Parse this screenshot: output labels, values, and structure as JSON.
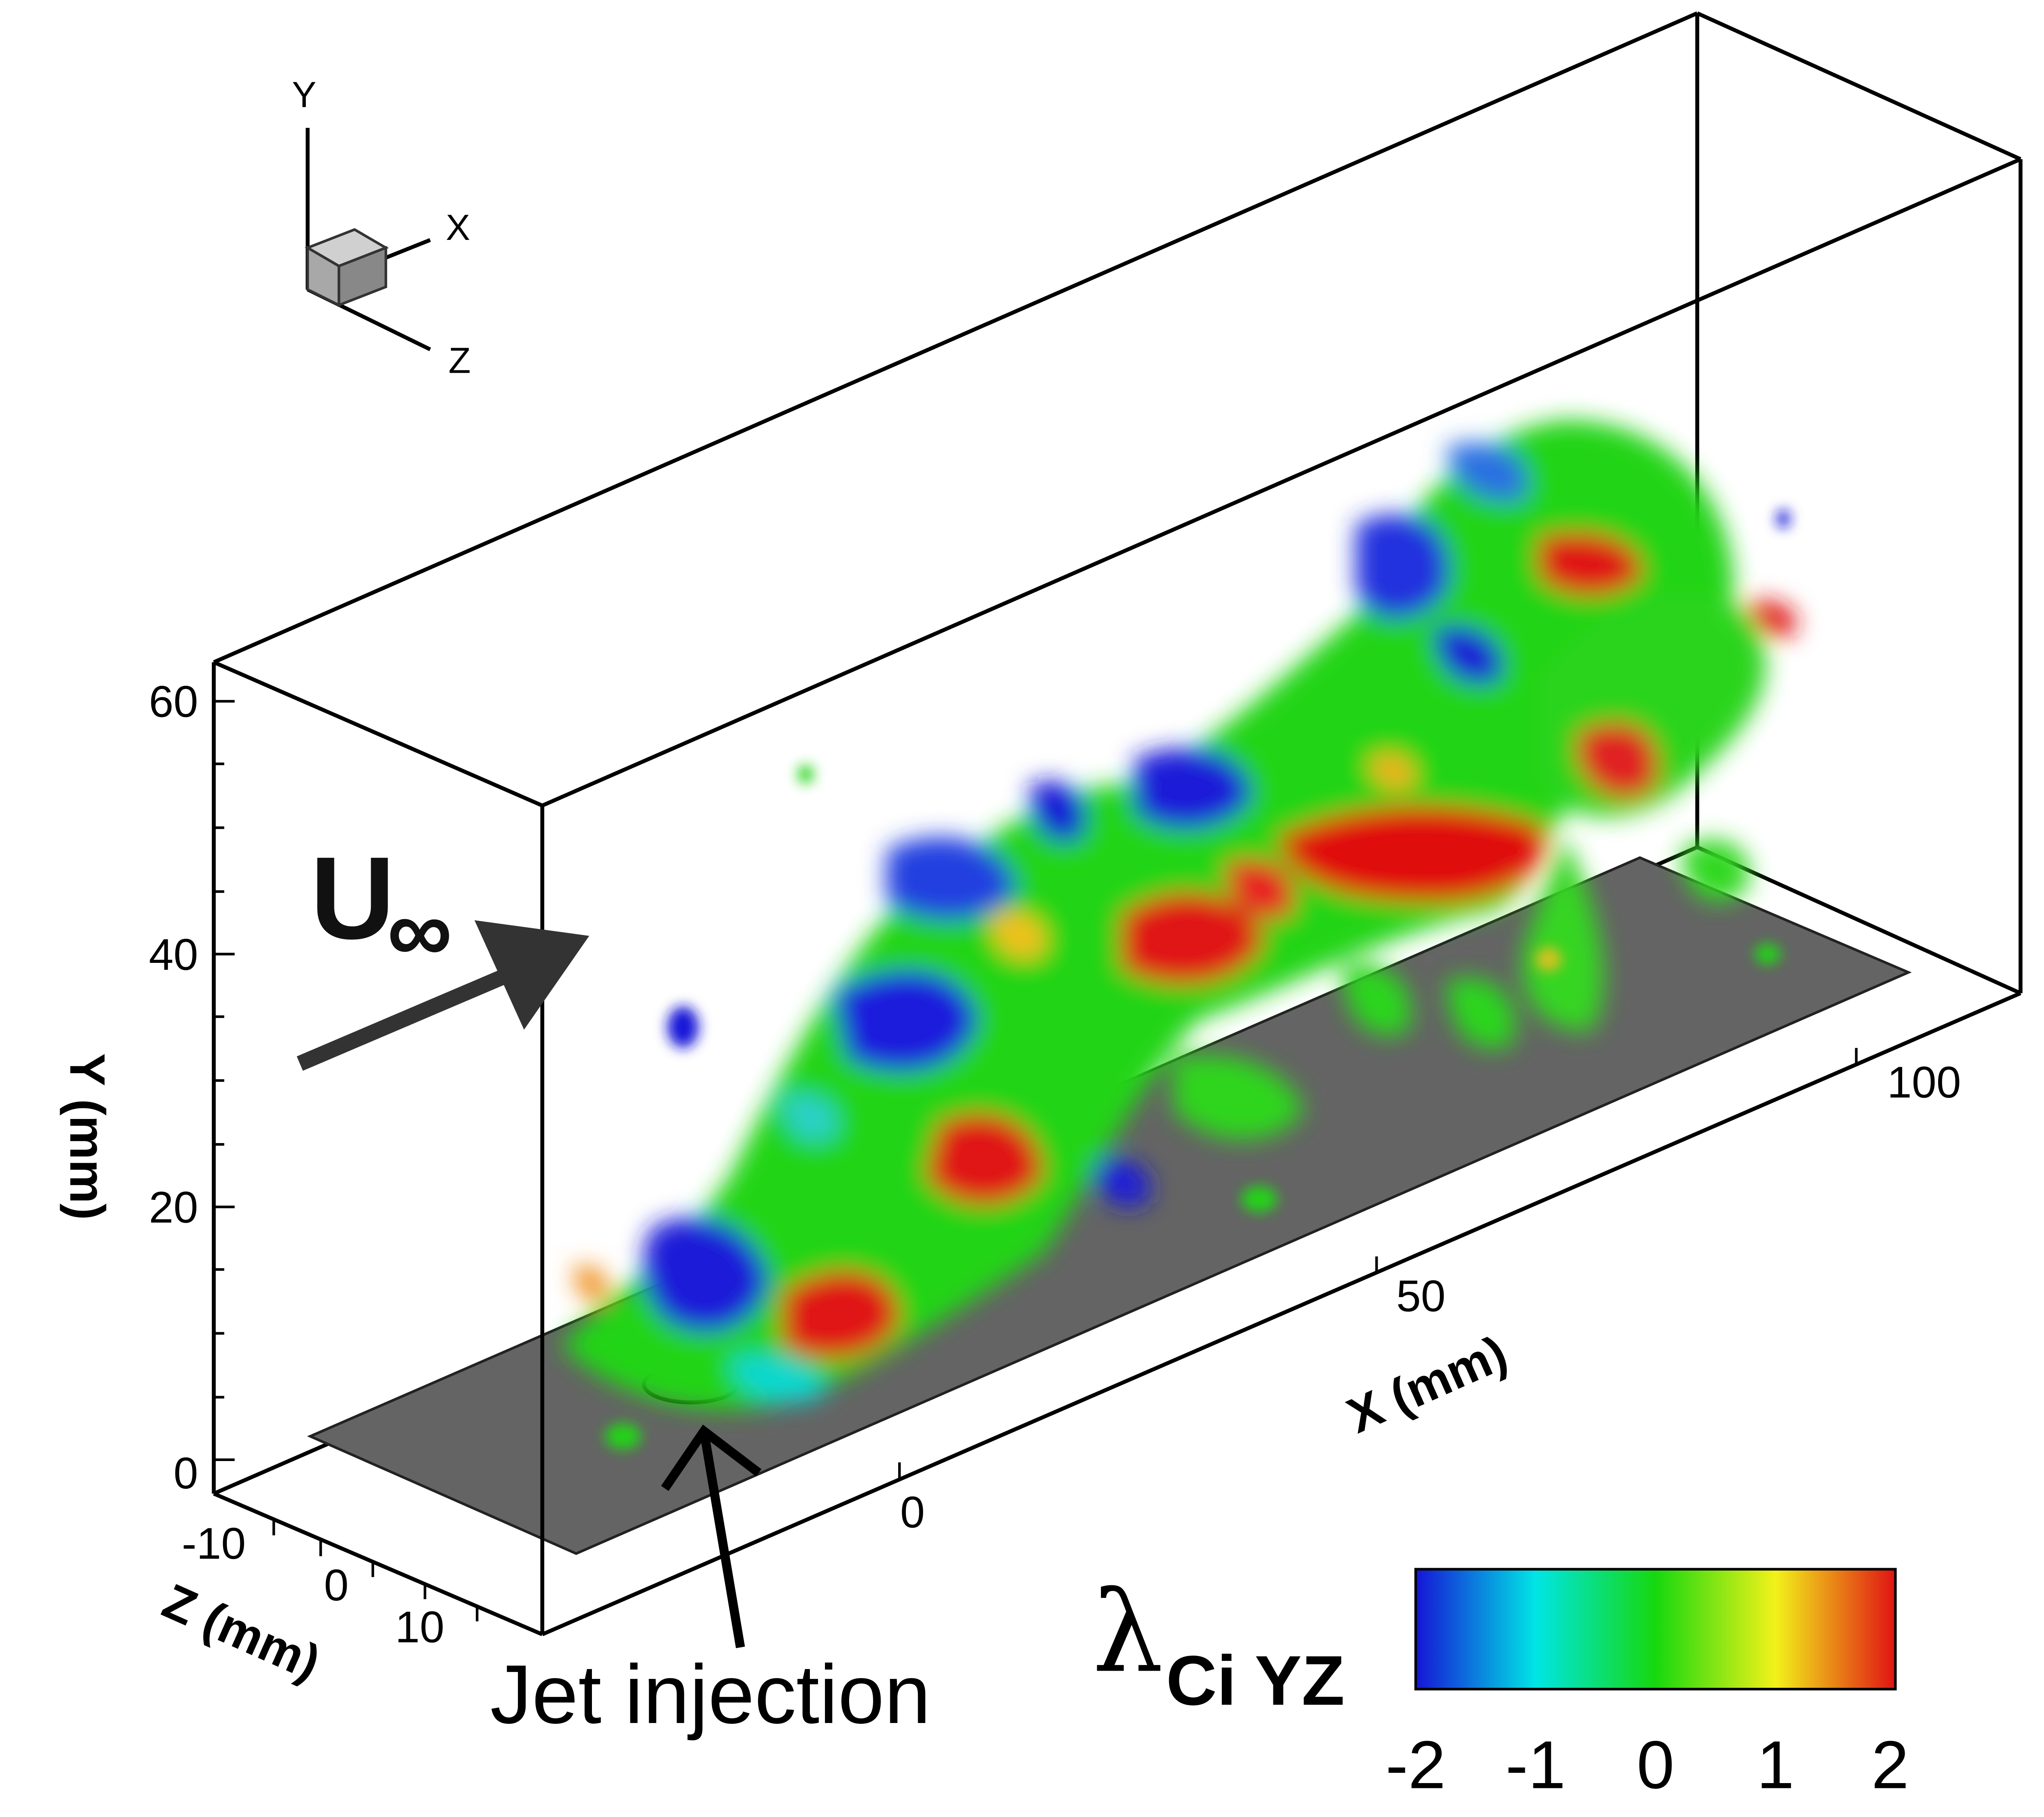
{
  "triad": {
    "y": "Y",
    "x": "X",
    "z": "Z"
  },
  "y_axis": {
    "label": "Y (mm)",
    "ticks": [
      "60",
      "40",
      "20",
      "0"
    ]
  },
  "x_axis": {
    "label": "X (mm)",
    "ticks": [
      "0",
      "50",
      "100"
    ]
  },
  "z_axis": {
    "label": "Z (mm)",
    "ticks": [
      "-10",
      "0",
      "10"
    ]
  },
  "annotations": {
    "freestream": "U",
    "freestream_sub": "∞",
    "jet": "Jet injection"
  },
  "colorbar": {
    "label_symbol": "λ",
    "label_sub": "Ci YZ",
    "ticks": [
      "-2",
      "-1",
      "0",
      "1",
      "2"
    ],
    "range": [
      -2,
      2
    ],
    "colors": [
      "#1515d6",
      "#00e5e5",
      "#16d80e",
      "#f2f21a",
      "#e01313"
    ]
  }
}
